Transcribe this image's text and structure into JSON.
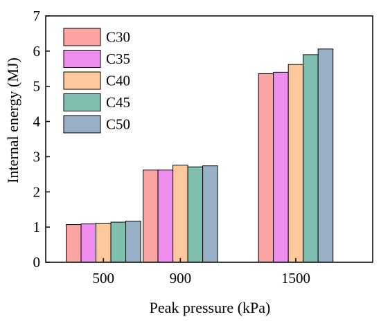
{
  "chart_data": {
    "type": "bar",
    "xlabel": "Peak pressure (kPa)",
    "ylabel": "Internal energy (MJ)",
    "ylim": [
      0,
      7
    ],
    "yticks": [
      0,
      1,
      2,
      3,
      4,
      5,
      6,
      7
    ],
    "categories": [
      "500",
      "900",
      "1500"
    ],
    "category_positions": [
      500,
      900,
      1500
    ],
    "series": [
      {
        "name": "C30",
        "color": "#fca3a3",
        "values": [
          1.07,
          2.62,
          5.36
        ]
      },
      {
        "name": "C35",
        "color": "#f08ef0",
        "values": [
          1.09,
          2.62,
          5.4
        ]
      },
      {
        "name": "C40",
        "color": "#fcc89c",
        "values": [
          1.11,
          2.76,
          5.62
        ]
      },
      {
        "name": "C45",
        "color": "#7fbfb0",
        "values": [
          1.14,
          2.71,
          5.9
        ]
      },
      {
        "name": "C50",
        "color": "#98b0c6",
        "values": [
          1.17,
          2.74,
          6.06
        ]
      }
    ],
    "legend": "top-left",
    "grid": false
  }
}
